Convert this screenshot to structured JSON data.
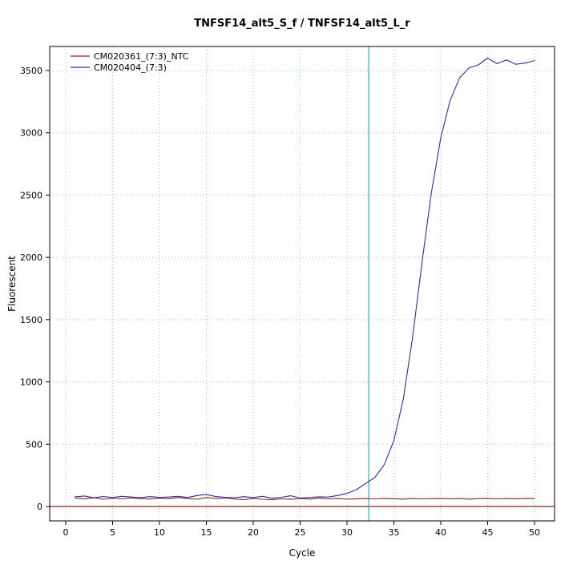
{
  "chart_data": {
    "type": "line",
    "title": "TNFSF14_alt5_S_f / TNFSF14_alt5_L_r",
    "xlabel": "Cycle",
    "ylabel": "Fluorescent",
    "x_ticks": [
      0,
      5,
      10,
      15,
      20,
      25,
      30,
      35,
      40,
      45,
      50
    ],
    "y_ticks": [
      0,
      500,
      1000,
      1500,
      2000,
      2500,
      3000,
      3500
    ],
    "xlim": [
      -1.7,
      52.1
    ],
    "ylim": [
      -116,
      3693
    ],
    "grid": true,
    "grid_color": "#9fc5c5",
    "legend_position": "top-left",
    "threshold_line": {
      "y": 0,
      "color": "#8b2323"
    },
    "ct_line": {
      "x": 32.3,
      "color": "#00cdcd"
    },
    "x": [
      1,
      2,
      3,
      4,
      5,
      6,
      7,
      8,
      9,
      10,
      11,
      12,
      13,
      14,
      15,
      16,
      17,
      18,
      19,
      20,
      21,
      22,
      23,
      24,
      25,
      26,
      27,
      28,
      29,
      30,
      31,
      32,
      33,
      34,
      35,
      36,
      37,
      38,
      39,
      40,
      41,
      42,
      43,
      44,
      45,
      46,
      47,
      48,
      49,
      50
    ],
    "series": [
      {
        "name": "CM020361_(7:3)_NTC",
        "color": "#8b2323",
        "values": [
          68,
          62,
          70,
          58,
          66,
          61,
          69,
          64,
          60,
          67,
          63,
          70,
          65,
          58,
          72,
          64,
          68,
          60,
          56,
          64,
          58,
          54,
          62,
          57,
          64,
          59,
          67,
          61,
          64,
          59,
          62,
          64,
          61,
          65,
          62,
          59,
          64,
          61,
          63,
          65,
          62,
          64,
          59,
          63,
          65,
          61,
          64,
          62,
          65,
          63
        ]
      },
      {
        "name": "CM020404_(7:3)",
        "color": "#2e2e9c",
        "values": [
          78,
          84,
          70,
          80,
          72,
          82,
          76,
          70,
          80,
          73,
          76,
          82,
          72,
          88,
          96,
          80,
          74,
          70,
          79,
          72,
          82,
          66,
          74,
          86,
          68,
          72,
          78,
          76,
          88,
          105,
          135,
          185,
          235,
          340,
          530,
          860,
          1360,
          1960,
          2520,
          2960,
          3260,
          3440,
          3520,
          3545,
          3600,
          3555,
          3585,
          3550,
          3560,
          3580
        ]
      }
    ]
  }
}
